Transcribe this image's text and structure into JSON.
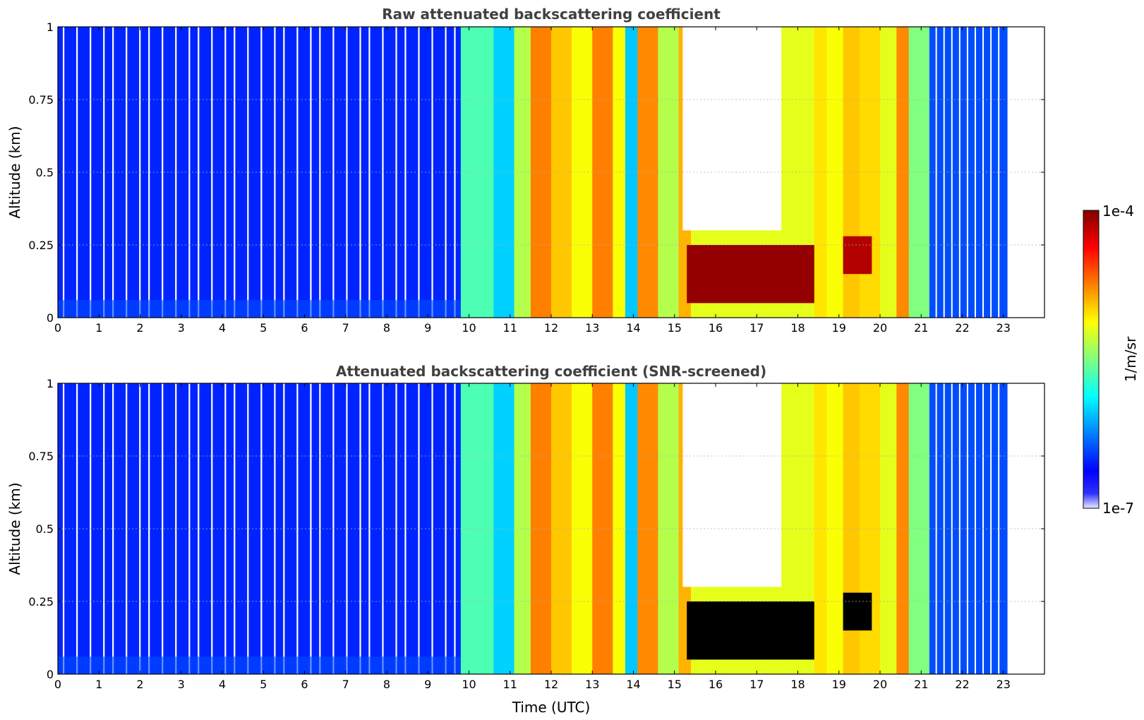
{
  "chart_data": [
    {
      "type": "heatmap",
      "title": "Raw attenuated backscattering coefficient",
      "xlabel": "",
      "ylabel": "Altitude (km)",
      "xlim": [
        0,
        24
      ],
      "ylim": [
        0,
        1
      ],
      "x_ticks": [
        0,
        1,
        2,
        3,
        4,
        5,
        6,
        7,
        8,
        9,
        10,
        11,
        12,
        13,
        14,
        15,
        16,
        17,
        18,
        19,
        20,
        21,
        22,
        23
      ],
      "x_tick_labels": [
        "0",
        "1",
        "2",
        "3",
        "4",
        "5",
        "6",
        "7",
        "8",
        "9",
        "10",
        "11",
        "12",
        "13",
        "14",
        "15",
        "16",
        "17",
        "18",
        "19",
        "20",
        "21",
        "22",
        "23"
      ],
      "y_ticks": [
        0,
        0.25,
        0.5,
        0.75,
        1
      ],
      "y_tick_labels": [
        "0",
        "0.25",
        "0.5",
        "0.75",
        "1"
      ],
      "grid": true,
      "data_end_hour": 23.1,
      "blocks": [
        {
          "t0": 0.0,
          "t1": 9.8,
          "level": 0.16
        },
        {
          "t0": 9.8,
          "t1": 10.6,
          "level": 0.45
        },
        {
          "t0": 10.6,
          "t1": 11.1,
          "level": 0.33
        },
        {
          "t0": 11.1,
          "t1": 11.5,
          "level": 0.55
        },
        {
          "t0": 11.5,
          "t1": 12.0,
          "level": 0.75
        },
        {
          "t0": 12.0,
          "t1": 12.5,
          "level": 0.68
        },
        {
          "t0": 12.5,
          "t1": 13.0,
          "level": 0.62
        },
        {
          "t0": 13.0,
          "t1": 13.5,
          "level": 0.75
        },
        {
          "t0": 13.5,
          "t1": 13.8,
          "level": 0.62
        },
        {
          "t0": 13.8,
          "t1": 14.1,
          "level": 0.32
        },
        {
          "t0": 14.1,
          "t1": 14.6,
          "level": 0.74
        },
        {
          "t0": 14.6,
          "t1": 15.1,
          "level": 0.55
        },
        {
          "t0": 15.1,
          "t1": 15.4,
          "level": 0.7
        },
        {
          "t0": 15.4,
          "t1": 18.4,
          "level": 0.6
        },
        {
          "t0": 18.4,
          "t1": 18.7,
          "level": 0.65
        },
        {
          "t0": 18.7,
          "t1": 19.1,
          "level": 0.62
        },
        {
          "t0": 19.1,
          "t1": 19.5,
          "level": 0.68
        },
        {
          "t0": 19.5,
          "t1": 20.0,
          "level": 0.66
        },
        {
          "t0": 20.0,
          "t1": 20.4,
          "level": 0.6
        },
        {
          "t0": 20.4,
          "t1": 20.7,
          "level": 0.74
        },
        {
          "t0": 20.7,
          "t1": 21.2,
          "level": 0.5
        },
        {
          "t0": 21.2,
          "t1": 23.1,
          "level": 0.2
        }
      ],
      "cloud_layer": {
        "t0": 15.3,
        "t1": 18.4,
        "alt_min": 0.05,
        "alt_max": 0.25,
        "level": 0.98
      },
      "cloud_layer_2": {
        "t0": 19.1,
        "t1": 19.8,
        "alt_min": 0.15,
        "alt_max": 0.28,
        "level": 0.95
      },
      "missing_region": {
        "t0": 15.2,
        "t1": 17.6,
        "alt_min": 0.3,
        "alt_max": 1.0
      }
    },
    {
      "type": "heatmap",
      "title": "Attenuated backscattering coefficient (SNR-screened)",
      "xlabel": "Time (UTC)",
      "ylabel": "Altitude (km)",
      "xlim": [
        0,
        24
      ],
      "ylim": [
        0,
        1
      ],
      "x_ticks": [
        0,
        1,
        2,
        3,
        4,
        5,
        6,
        7,
        8,
        9,
        10,
        11,
        12,
        13,
        14,
        15,
        16,
        17,
        18,
        19,
        20,
        21,
        22,
        23
      ],
      "x_tick_labels": [
        "0",
        "1",
        "2",
        "3",
        "4",
        "5",
        "6",
        "7",
        "8",
        "9",
        "10",
        "11",
        "12",
        "13",
        "14",
        "15",
        "16",
        "17",
        "18",
        "19",
        "20",
        "21",
        "22",
        "23"
      ],
      "y_ticks": [
        0,
        0.25,
        0.5,
        0.75,
        1
      ],
      "y_tick_labels": [
        "0",
        "0.25",
        "0.5",
        "0.75",
        "1"
      ],
      "grid": true,
      "data_end_hour": 23.1,
      "blocks": [
        {
          "t0": 0.0,
          "t1": 9.8,
          "level": 0.16
        },
        {
          "t0": 9.8,
          "t1": 10.6,
          "level": 0.45
        },
        {
          "t0": 10.6,
          "t1": 11.1,
          "level": 0.33
        },
        {
          "t0": 11.1,
          "t1": 11.5,
          "level": 0.55
        },
        {
          "t0": 11.5,
          "t1": 12.0,
          "level": 0.75
        },
        {
          "t0": 12.0,
          "t1": 12.5,
          "level": 0.68
        },
        {
          "t0": 12.5,
          "t1": 13.0,
          "level": 0.62
        },
        {
          "t0": 13.0,
          "t1": 13.5,
          "level": 0.75
        },
        {
          "t0": 13.5,
          "t1": 13.8,
          "level": 0.62
        },
        {
          "t0": 13.8,
          "t1": 14.1,
          "level": 0.32
        },
        {
          "t0": 14.1,
          "t1": 14.6,
          "level": 0.74
        },
        {
          "t0": 14.6,
          "t1": 15.1,
          "level": 0.55
        },
        {
          "t0": 15.1,
          "t1": 15.4,
          "level": 0.7
        },
        {
          "t0": 15.4,
          "t1": 18.4,
          "level": 0.6
        },
        {
          "t0": 18.4,
          "t1": 18.7,
          "level": 0.65
        },
        {
          "t0": 18.7,
          "t1": 19.1,
          "level": 0.62
        },
        {
          "t0": 19.1,
          "t1": 19.5,
          "level": 0.68
        },
        {
          "t0": 19.5,
          "t1": 20.0,
          "level": 0.66
        },
        {
          "t0": 20.0,
          "t1": 20.4,
          "level": 0.6
        },
        {
          "t0": 20.4,
          "t1": 20.7,
          "level": 0.74
        },
        {
          "t0": 20.7,
          "t1": 21.2,
          "level": 0.5
        },
        {
          "t0": 21.2,
          "t1": 23.1,
          "level": 0.2
        }
      ],
      "cloud_layer": {
        "t0": 15.3,
        "t1": 18.4,
        "alt_min": 0.05,
        "alt_max": 0.25,
        "level": 1.0,
        "color": "#000000"
      },
      "cloud_layer_2": {
        "t0": 19.1,
        "t1": 19.8,
        "alt_min": 0.15,
        "alt_max": 0.28,
        "level": 1.0,
        "color": "#000000"
      },
      "missing_region": {
        "t0": 15.2,
        "t1": 17.6,
        "alt_min": 0.3,
        "alt_max": 1.0
      }
    }
  ],
  "colorbar": {
    "label": "1/m/sr",
    "max_label": "1e-4",
    "min_label": "1e-7",
    "colormap": "jet",
    "scale": "log"
  },
  "colors": {
    "title": "#404040",
    "grid": "#b0b0b0",
    "missing": "#ffffff"
  }
}
